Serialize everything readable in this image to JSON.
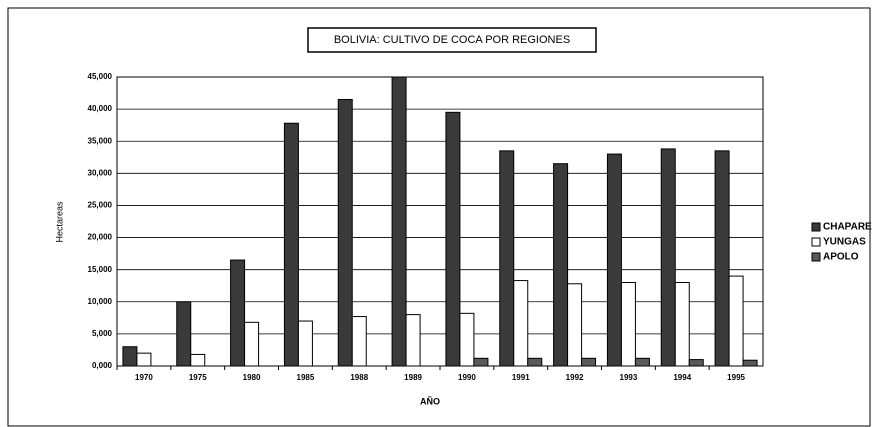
{
  "chart_data": {
    "type": "bar",
    "title": "BOLIVIA: CULTIVO DE COCA POR REGIONES",
    "y_label": "Hectareas",
    "x_label": "AÑO",
    "categories": [
      "1970",
      "1975",
      "1980",
      "1985",
      "1988",
      "1989",
      "1990",
      "1991",
      "1992",
      "1993",
      "1994",
      "1995"
    ],
    "series": [
      {
        "name": "CHAPARE",
        "color": "#3a3a3a",
        "values": [
          3000,
          10000,
          16500,
          37800,
          41500,
          45000,
          39500,
          33500,
          31500,
          33000,
          33800,
          33500
        ]
      },
      {
        "name": "YUNGAS",
        "color": "#ffffff",
        "values": [
          2000,
          1800,
          6800,
          7000,
          7700,
          8000,
          8200,
          13300,
          12800,
          13000,
          13000,
          14000
        ]
      },
      {
        "name": "APOLO",
        "color": "#5a5a5a",
        "values": [
          0,
          0,
          0,
          0,
          0,
          0,
          1200,
          1200,
          1200,
          1200,
          1000,
          900
        ]
      }
    ],
    "ylim": [
      0,
      45000
    ],
    "yticks": [
      {
        "value": 0,
        "label": "0,000"
      },
      {
        "value": 5000,
        "label": "5,000"
      },
      {
        "value": 10000,
        "label": "10,000"
      },
      {
        "value": 15000,
        "label": "15,000"
      },
      {
        "value": 20000,
        "label": "20,000"
      },
      {
        "value": 25000,
        "label": "25,000"
      },
      {
        "value": 30000,
        "label": "30,000"
      },
      {
        "value": 35000,
        "label": "35,000"
      },
      {
        "value": 40000,
        "label": "40,000"
      },
      {
        "value": 45000,
        "label": "45,000"
      }
    ],
    "grid": true,
    "legend": "right"
  }
}
